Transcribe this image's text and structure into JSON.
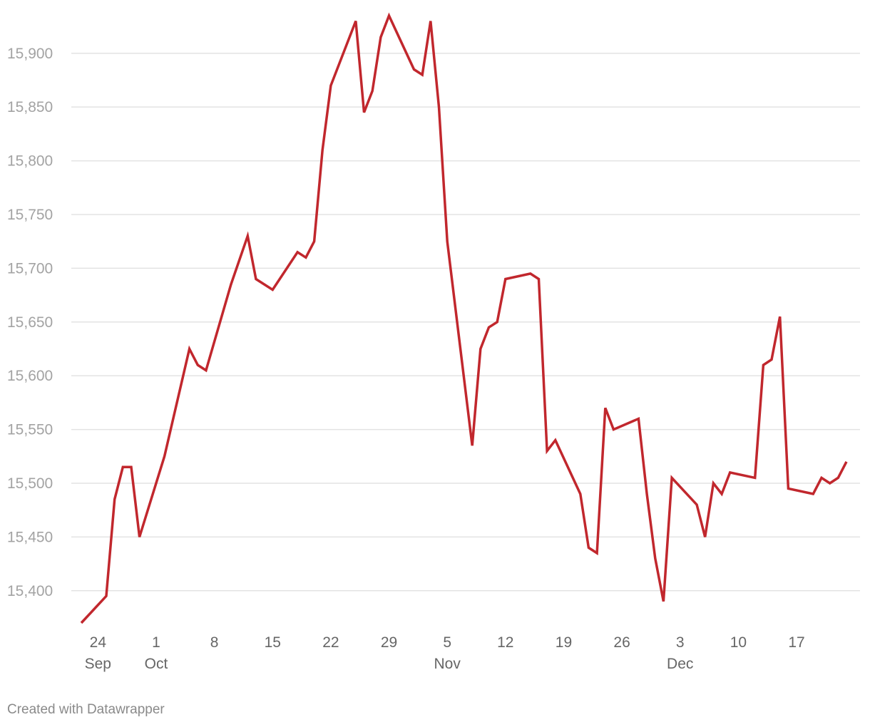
{
  "chart_data": {
    "type": "line",
    "series": [
      {
        "color": "#c1272d",
        "x": [
          "2023-09-22",
          "2023-09-25",
          "2023-09-26",
          "2023-09-27",
          "2023-09-28",
          "2023-09-29",
          "2023-10-02",
          "2023-10-05",
          "2023-10-06",
          "2023-10-07",
          "2023-10-10",
          "2023-10-12",
          "2023-10-13",
          "2023-10-15",
          "2023-10-18",
          "2023-10-19",
          "2023-10-20",
          "2023-10-21",
          "2023-10-22",
          "2023-10-25",
          "2023-10-26",
          "2023-10-27",
          "2023-10-28",
          "2023-10-29",
          "2023-11-01",
          "2023-11-02",
          "2023-11-03",
          "2023-11-04",
          "2023-11-05",
          "2023-11-08",
          "2023-11-09",
          "2023-11-10",
          "2023-11-11",
          "2023-11-12",
          "2023-11-15",
          "2023-11-16",
          "2023-11-17",
          "2023-11-18",
          "2023-11-21",
          "2023-11-22",
          "2023-11-23",
          "2023-11-24",
          "2023-11-25",
          "2023-11-28",
          "2023-11-29",
          "2023-11-30",
          "2023-12-01",
          "2023-12-02",
          "2023-12-05",
          "2023-12-06",
          "2023-12-07",
          "2023-12-08",
          "2023-12-09",
          "2023-12-12",
          "2023-12-13",
          "2023-12-14",
          "2023-12-15",
          "2023-12-16",
          "2023-12-19",
          "2023-12-20",
          "2023-12-21",
          "2023-12-22",
          "2023-12-23"
        ],
        "y": [
          15370,
          15395,
          15485,
          15515,
          15515,
          15450,
          15525,
          15625,
          15610,
          15605,
          15685,
          15730,
          15690,
          15680,
          15715,
          15710,
          15725,
          15810,
          15870,
          15930,
          15845,
          15865,
          15915,
          15935,
          15885,
          15880,
          15930,
          15850,
          15725,
          15535,
          15625,
          15645,
          15650,
          15690,
          15695,
          15690,
          15530,
          15540,
          15490,
          15440,
          15435,
          15570,
          15550,
          15560,
          15490,
          15430,
          15390,
          15505,
          15480,
          15450,
          15500,
          15490,
          15510,
          15505,
          15610,
          15615,
          15655,
          15495,
          15490,
          15505,
          15500,
          15505,
          15520
        ]
      }
    ],
    "yticks": [
      "15,400",
      "15,450",
      "15,500",
      "15,550",
      "15,600",
      "15,650",
      "15,700",
      "15,750",
      "15,800",
      "15,850",
      "15,900"
    ],
    "ytick_values": [
      15400,
      15450,
      15500,
      15550,
      15600,
      15650,
      15700,
      15750,
      15800,
      15850,
      15900
    ],
    "xticks": [
      {
        "date": "2023-09-24",
        "label": "24",
        "month": "Sep"
      },
      {
        "date": "2023-10-01",
        "label": "1",
        "month": "Oct"
      },
      {
        "date": "2023-10-08",
        "label": "8",
        "month": ""
      },
      {
        "date": "2023-10-15",
        "label": "15",
        "month": ""
      },
      {
        "date": "2023-10-22",
        "label": "22",
        "month": ""
      },
      {
        "date": "2023-10-29",
        "label": "29",
        "month": ""
      },
      {
        "date": "2023-11-05",
        "label": "5",
        "month": "Nov"
      },
      {
        "date": "2023-11-12",
        "label": "12",
        "month": ""
      },
      {
        "date": "2023-11-19",
        "label": "19",
        "month": ""
      },
      {
        "date": "2023-11-26",
        "label": "26",
        "month": ""
      },
      {
        "date": "2023-12-03",
        "label": "3",
        "month": "Dec"
      },
      {
        "date": "2023-12-10",
        "label": "10",
        "month": ""
      },
      {
        "date": "2023-12-17",
        "label": "17",
        "month": ""
      }
    ],
    "ylim": [
      15370,
      15935
    ],
    "xlim": [
      "2023-09-22",
      "2023-12-23"
    ],
    "grid": true,
    "legend": "none"
  },
  "footer": {
    "credit": "Created with Datawrapper"
  }
}
